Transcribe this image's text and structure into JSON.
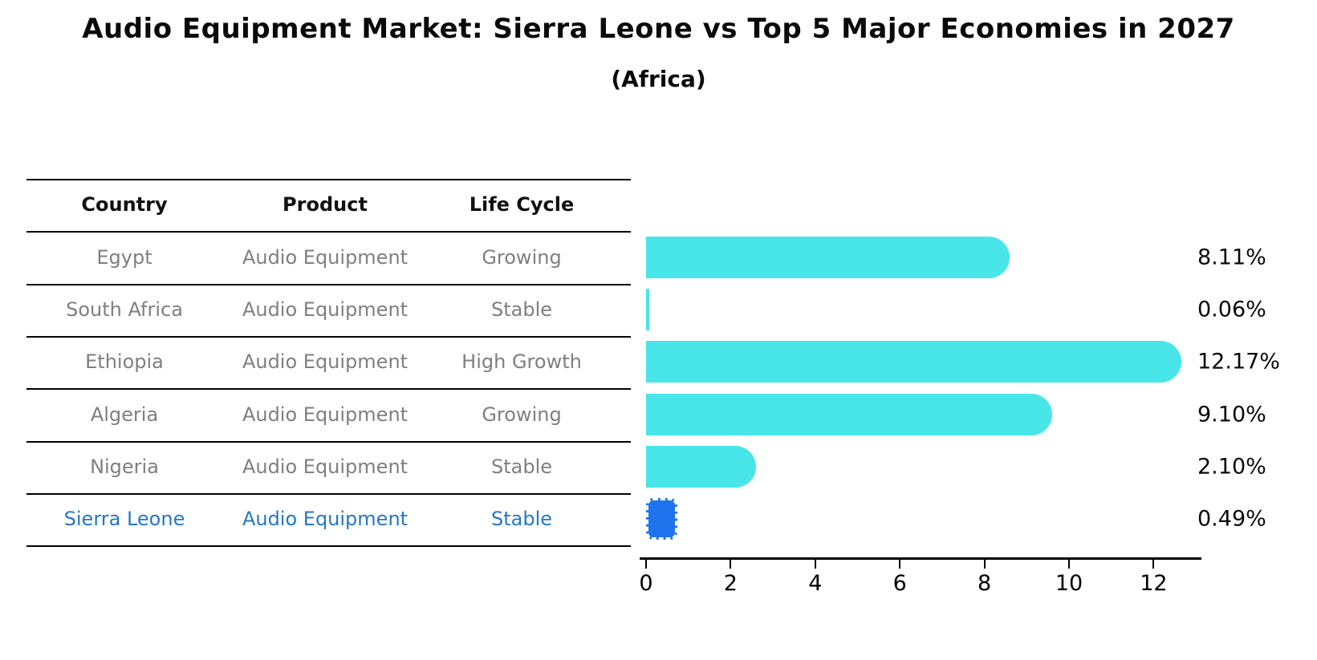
{
  "title": "Audio Equipment Market: Sierra Leone vs Top 5 Major Economies in 2027",
  "subtitle": "(Africa)",
  "table": {
    "headers": [
      "Country",
      "Product",
      "Life Cycle"
    ],
    "rows": [
      {
        "country": "Egypt",
        "product": "Audio Equipment",
        "life_cycle": "Growing",
        "highlight": false
      },
      {
        "country": "South Africa",
        "product": "Audio Equipment",
        "life_cycle": "Stable",
        "highlight": false
      },
      {
        "country": "Ethiopia",
        "product": "Audio Equipment",
        "life_cycle": "High Growth",
        "highlight": false
      },
      {
        "country": "Algeria",
        "product": "Audio Equipment",
        "life_cycle": "Growing",
        "highlight": false
      },
      {
        "country": "Nigeria",
        "product": "Audio Equipment",
        "life_cycle": "Stable",
        "highlight": false
      },
      {
        "country": "Sierra Leone",
        "product": "Audio Equipment",
        "life_cycle": "Stable",
        "highlight": true
      }
    ]
  },
  "chart_data": {
    "type": "bar",
    "orientation": "horizontal",
    "title": "Audio Equipment Market: Sierra Leone vs Top 5 Major Economies in 2027",
    "subtitle": "(Africa)",
    "categories": [
      "Egypt",
      "South Africa",
      "Ethiopia",
      "Algeria",
      "Nigeria",
      "Sierra Leone"
    ],
    "values": [
      8.11,
      0.06,
      12.17,
      9.1,
      2.1,
      0.49
    ],
    "value_labels": [
      "8.11%",
      "0.06%",
      "12.17%",
      "9.10%",
      "2.10%",
      "0.49%"
    ],
    "x_ticks": [
      0,
      2,
      4,
      6,
      8,
      10,
      12
    ],
    "xlim": [
      0,
      13.2
    ],
    "grid": false,
    "legend": "none",
    "bar_color": "#48e5e9",
    "highlight_bar_color": "#1f74ee",
    "highlight_index": 5,
    "highlight_style": "dashed-edge",
    "highlight_text_color": "#2577c8",
    "text_color": "#7f7f7f",
    "axis_color": "#000000"
  }
}
